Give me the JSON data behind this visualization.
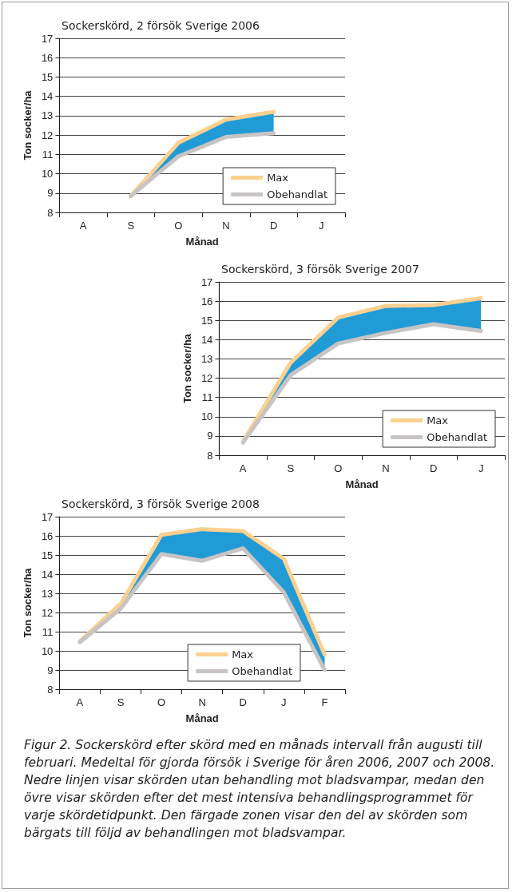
{
  "chart_data": [
    {
      "type": "line",
      "title": "Sockerskörd, 2 försök Sverige 2006",
      "xlabel": "Månad",
      "ylabel": "Ton socker/ha",
      "categories": [
        "A",
        "S",
        "O",
        "N",
        "D",
        "J"
      ],
      "ylim": [
        8,
        17
      ],
      "yticks": [
        8,
        9,
        10,
        11,
        12,
        13,
        14,
        15,
        16,
        17
      ],
      "grid": "y",
      "legend": "bottom right",
      "marker": "none",
      "line_style": "solid",
      "series": [
        {
          "name": "Max",
          "color": "#fcd08f",
          "values": [
            null,
            8.85,
            11.6,
            12.8,
            13.2,
            null
          ],
          "lower": [
            null,
            8.85,
            10.9,
            11.9,
            12.1,
            null
          ],
          "upper": [
            null,
            8.85,
            11.6,
            12.8,
            13.2,
            null
          ]
        },
        {
          "name": "Obehandlat",
          "color": "#c8c4c4",
          "values": [
            null,
            8.85,
            10.9,
            11.9,
            12.1,
            null
          ]
        }
      ]
    },
    {
      "type": "line",
      "title": "Sockerskörd, 3 försök Sverige 2007",
      "xlabel": "Månad",
      "ylabel": "Ton socker/ha",
      "categories": [
        "A",
        "S",
        "O",
        "N",
        "D",
        "J"
      ],
      "ylim": [
        8,
        17
      ],
      "yticks": [
        8,
        9,
        10,
        11,
        12,
        13,
        14,
        15,
        16,
        17
      ],
      "grid": "y",
      "legend": "bottom right",
      "marker": "none",
      "line_style": "solid",
      "series": [
        {
          "name": "Max",
          "color": "#fcd08f",
          "values": [
            8.7,
            12.8,
            15.15,
            15.75,
            15.8,
            16.15
          ],
          "lower": [
            8.65,
            12.15,
            13.8,
            14.35,
            14.8,
            14.45
          ],
          "upper": [
            8.7,
            12.8,
            15.15,
            15.75,
            15.8,
            16.15
          ]
        },
        {
          "name": "Obehandlat",
          "color": "#c8c4c4",
          "values": [
            8.65,
            12.15,
            13.8,
            14.35,
            14.8,
            14.45
          ]
        }
      ]
    },
    {
      "type": "line",
      "title": "Sockerskörd, 3 försök Sverige 2008",
      "xlabel": "Månad",
      "ylabel": "Ton socker/ha",
      "categories": [
        "A",
        "S",
        "O",
        "N",
        "D",
        "J",
        "F"
      ],
      "ylim": [
        8,
        17
      ],
      "yticks": [
        8,
        9,
        10,
        11,
        12,
        13,
        14,
        15,
        16,
        17
      ],
      "grid": "y",
      "legend": "bottom right",
      "marker": "none",
      "line_style": "solid",
      "annotations": [
        "Figur 2. Sockerskörd efter skörd med en månads intervall från augusti till februari. Medeltal för gjorda försök i Sverige för åren 2006, 2007 och 2008. Nedre linjen visar skörden utan behandling mot bladsvampar, medan den övre visar skörden efter det mest intensiva behandlingsprogrammet för varje skördetidpunkt. Den färgade zonen visar den del av skörden som bärgats till följd av behandlingen mot bladsvampar."
      ],
      "series": [
        {
          "name": "Max",
          "color": "#fcd08f",
          "values": [
            10.5,
            12.45,
            16.05,
            16.35,
            16.25,
            14.8,
            9.8
          ],
          "lower": [
            10.45,
            12.2,
            15.05,
            14.7,
            15.35,
            13.05,
            9.0
          ],
          "upper": [
            10.5,
            12.45,
            16.05,
            16.35,
            16.25,
            14.8,
            9.8
          ]
        },
        {
          "name": "Obehandlat",
          "color": "#c8c4c4",
          "values": [
            10.45,
            12.2,
            15.05,
            14.7,
            15.35,
            13.05,
            9.0
          ]
        }
      ]
    }
  ]
}
